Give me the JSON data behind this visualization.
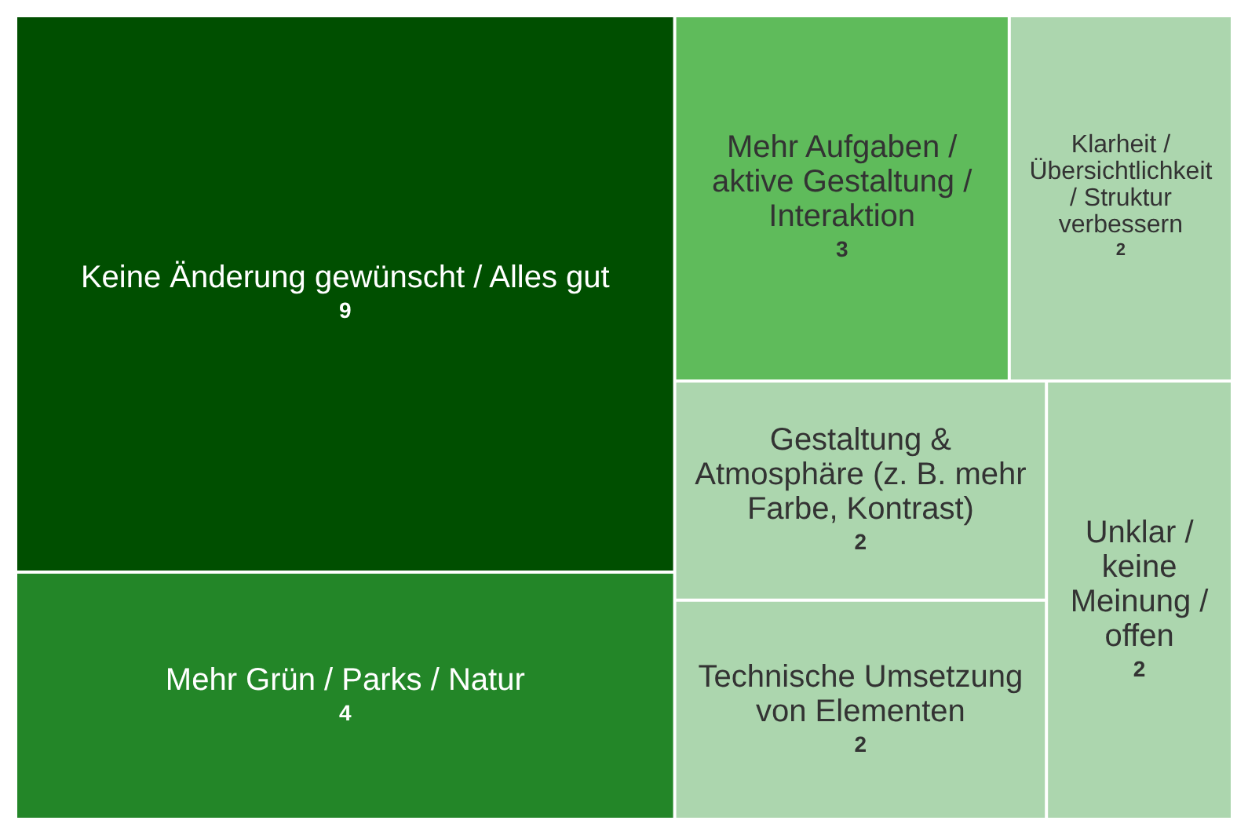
{
  "chart_data": {
    "type": "other",
    "categories": [
      "Keine Änderung gewünscht / Alles gut",
      "Mehr Grün / Parks / Natur",
      "Mehr Aufgaben / aktive Gestaltung / Interaktion",
      "Klarheit / Übersichtlichkeit / Struktur verbessern",
      "Gestaltung & Atmosphäre (z. B. mehr Farbe, Kontrast)",
      "Technische Umsetzung von Elementen",
      "Unklar / keine Meinung / offen"
    ],
    "values": [
      9,
      4,
      3,
      2,
      2,
      2,
      2
    ],
    "colors": [
      "#004f00",
      "#238628",
      "#5fbb5b",
      "#acd6ae",
      "#acd6ae",
      "#acd6ae",
      "#acd6ae"
    ],
    "data_labels": true
  }
}
